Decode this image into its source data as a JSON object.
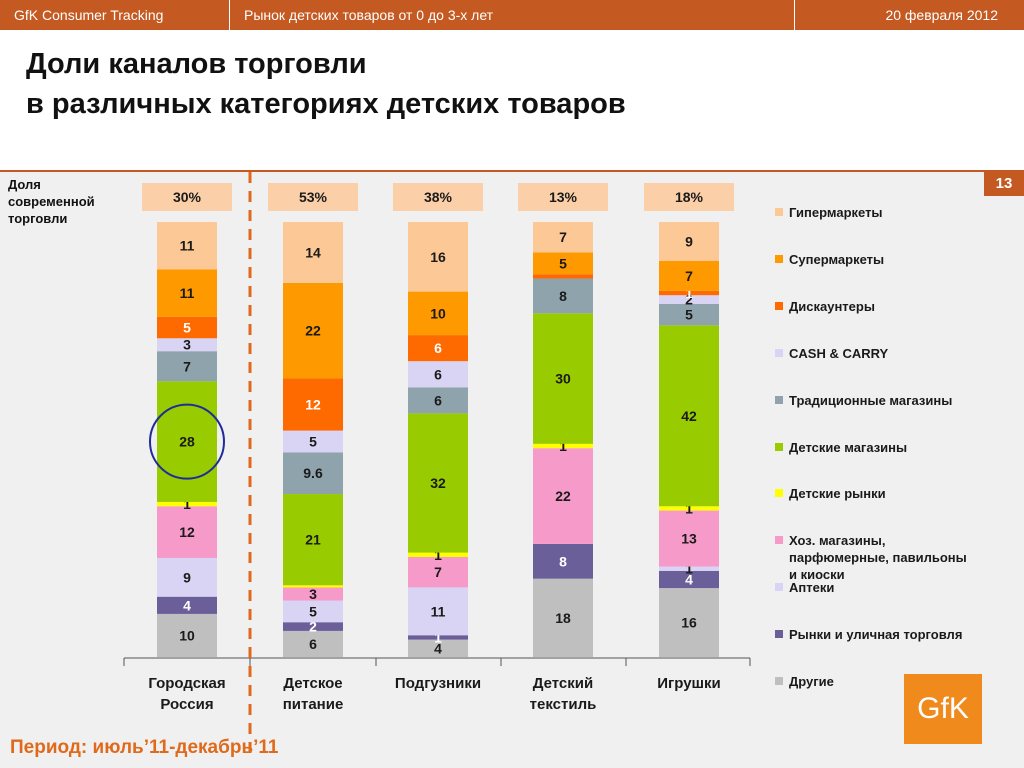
{
  "header": {
    "left": "GfK Consumer Tracking",
    "center": "Рынок детских товаров от 0 до 3-х лет",
    "right": "20 февраля 2012"
  },
  "title": {
    "line1": "Доли каналов торговли",
    "line2": "в различных категориях детских товаров"
  },
  "page_number": "13",
  "share_label": "Доля современной торговли",
  "period": "Период: июль’11-декабрь’11",
  "logo": "GfK",
  "colors": {
    "header_bg": "#c45a22",
    "accent_orange": "#e06a1b",
    "logo_bg": "#f08a1d",
    "share_box_bg": "#fbcfa8",
    "highlight_circle": "#1f2c9a"
  },
  "chart_data": {
    "type": "bar",
    "stacked": true,
    "categories": [
      [
        "Городская",
        "Россия"
      ],
      [
        "Детское",
        "питание"
      ],
      [
        "Подгузники"
      ],
      [
        "Детский",
        "текстиль"
      ],
      [
        "Игрушки"
      ]
    ],
    "modern_trade_share": [
      "30%",
      "53%",
      "38%",
      "13%",
      "18%"
    ],
    "series": [
      {
        "name": "Другие",
        "color": "#bfbfbf",
        "values": [
          10,
          6,
          4,
          18,
          16
        ]
      },
      {
        "name": "Рынки и уличная торговля",
        "color": "#6b5f9a",
        "values": [
          4,
          2,
          1,
          8,
          4
        ]
      },
      {
        "name": "Аптеки",
        "color": "#d9d4f4",
        "values": [
          9,
          5,
          11,
          0,
          1
        ]
      },
      {
        "name": "Хоз. магазины, парфюмерные, павильоны и киоски",
        "color": "#f59ac9",
        "values": [
          12,
          3,
          7,
          22,
          13
        ]
      },
      {
        "name": "Детские рынки",
        "color": "#ffff00",
        "values": [
          1,
          0.5,
          1,
          1,
          1
        ]
      },
      {
        "name": "Детские магазины",
        "color": "#99cc00",
        "values": [
          28,
          21,
          32,
          30,
          42
        ]
      },
      {
        "name": "Традиционные магазины",
        "color": "#8fa3ad",
        "values": [
          7,
          9.6,
          6,
          8,
          5
        ]
      },
      {
        "name": "CASH & CARRY",
        "color": "#d9d4f4",
        "values": [
          3,
          5,
          6,
          0,
          2
        ]
      },
      {
        "name": "Дискаунтеры",
        "color": "#ff6a00",
        "values": [
          5,
          12,
          6,
          1,
          1
        ]
      },
      {
        "name": "Супермаркеты",
        "color": "#ff9900",
        "values": [
          11,
          22,
          10,
          5,
          7
        ]
      },
      {
        "name": "Гипермаркеты",
        "color": "#fbc896",
        "values": [
          11,
          14,
          16,
          7,
          9
        ]
      }
    ],
    "labels": [
      [
        "10",
        "4",
        "9",
        "12",
        "1",
        "28",
        "7",
        "3",
        "5",
        "11",
        "11"
      ],
      [
        "6",
        "2",
        "5",
        "3",
        "",
        "21",
        "9.6",
        "5",
        "12",
        "22",
        "14"
      ],
      [
        "4",
        "1",
        "11",
        "7",
        "1",
        "32",
        "6",
        "6",
        "6",
        "10",
        "16"
      ],
      [
        "18",
        "8",
        "",
        "22",
        "1",
        "30",
        "8",
        "",
        "",
        "5",
        "7"
      ],
      [
        "16",
        "4",
        "1",
        "13",
        "1",
        "42",
        "5",
        "2",
        "1",
        "7",
        "9"
      ]
    ],
    "legend": [
      {
        "name": "Гипермаркеты",
        "color": "#fbc896"
      },
      {
        "name": "Супермаркеты",
        "color": "#ff9900"
      },
      {
        "name": "Дискаунтеры",
        "color": "#ff6a00"
      },
      {
        "name": "CASH & CARRY",
        "color": "#d9d4f4"
      },
      {
        "name": "Традиционные магазины",
        "color": "#8fa3ad"
      },
      {
        "name": "Детские магазины",
        "color": "#99cc00"
      },
      {
        "name": "Детские рынки",
        "color": "#ffff00"
      },
      {
        "name": "Хоз. магазины, парфюмерные, павильоны и киоски",
        "color": "#f59ac9"
      },
      {
        "name": "Аптеки",
        "color": "#d9d4f4"
      },
      {
        "name": "Рынки и уличная торговля",
        "color": "#6b5f9a"
      },
      {
        "name": "Другие",
        "color": "#bfbfbf"
      }
    ],
    "legend_position": "right",
    "highlight": {
      "category_index": 0,
      "series": "Детские магазины",
      "shape": "circle"
    },
    "grid": false
  }
}
